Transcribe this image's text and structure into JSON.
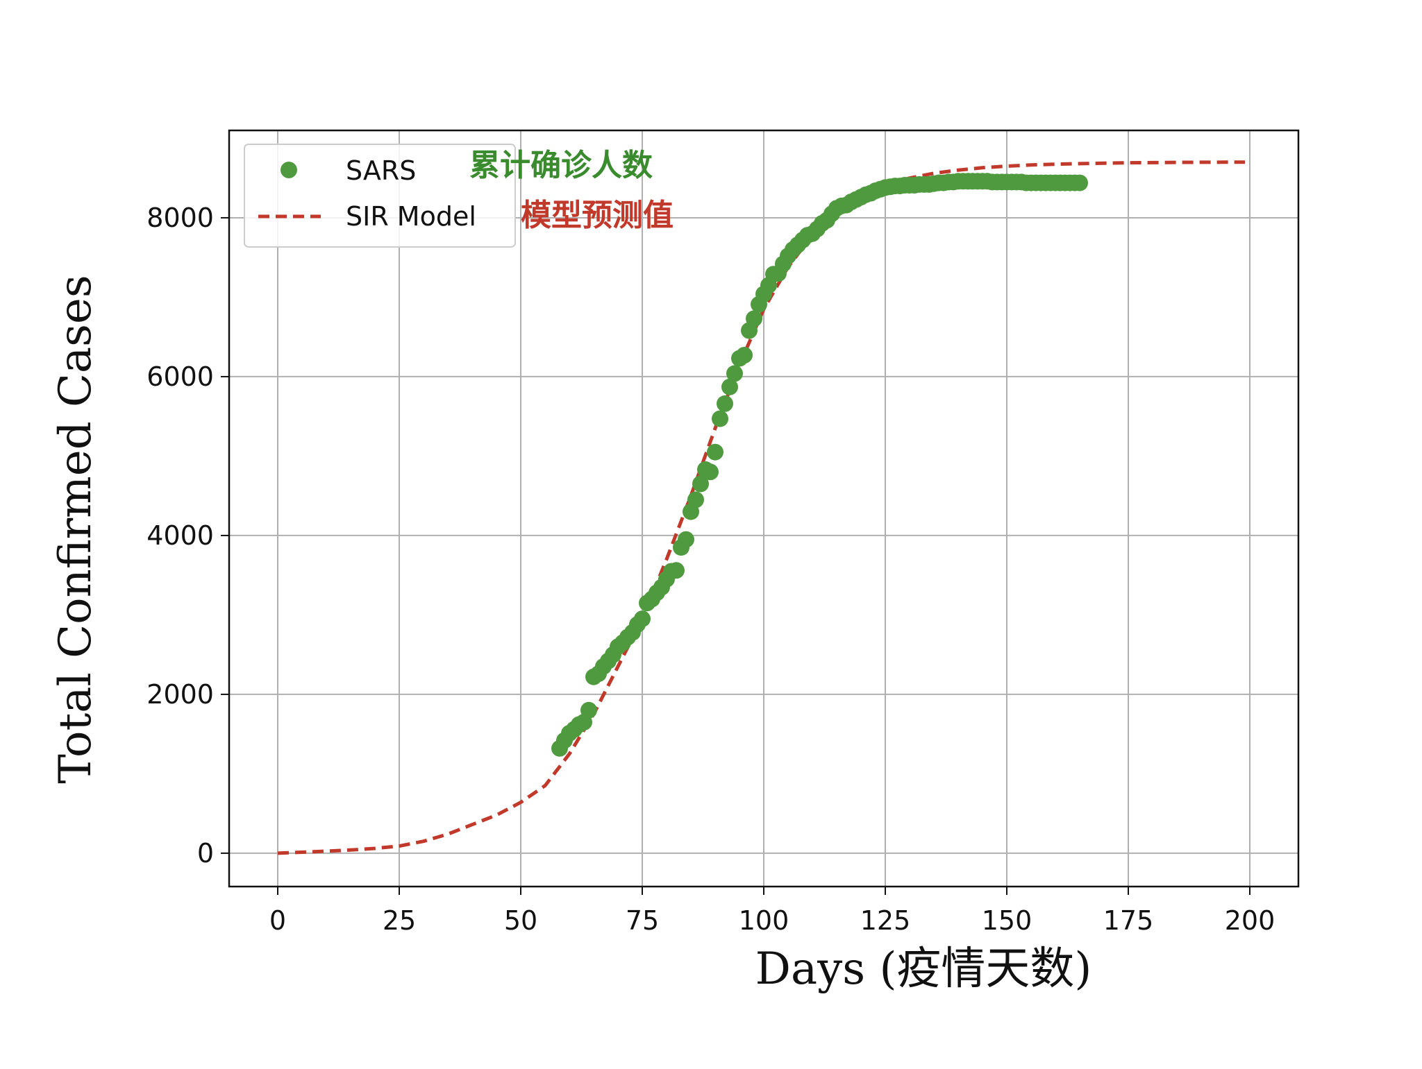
{
  "chart_data": {
    "type": "scatter",
    "xlabel": "Days (疫情天数)",
    "ylabel": "Total Confirmed Cases",
    "xlim": [
      -10,
      210
    ],
    "ylim": [
      -420,
      9100
    ],
    "xticks": [
      0,
      25,
      50,
      75,
      100,
      125,
      150,
      175,
      200
    ],
    "yticks": [
      0,
      2000,
      4000,
      6000,
      8000
    ],
    "grid": true,
    "legend_position": "top-left",
    "series": [
      {
        "name": "SARS",
        "type": "scatter",
        "color": "#4f9a3e",
        "x": [
          58,
          59,
          60,
          61,
          62,
          63,
          64,
          65,
          66,
          67,
          68,
          69,
          70,
          71,
          72,
          73,
          74,
          75,
          76,
          77,
          78,
          79,
          80,
          81,
          82,
          83,
          84,
          85,
          86,
          87,
          88,
          89,
          90,
          91,
          92,
          93,
          94,
          95,
          96,
          97,
          98,
          99,
          100,
          101,
          102,
          103,
          104,
          105,
          106,
          107,
          108,
          109,
          110,
          111,
          112,
          113,
          114,
          115,
          116,
          117,
          118,
          119,
          120,
          121,
          122,
          123,
          124,
          125,
          126,
          127,
          128,
          129,
          130,
          131,
          132,
          133,
          134,
          135,
          136,
          137,
          138,
          139,
          140,
          141,
          142,
          143,
          144,
          145,
          146,
          147,
          148,
          149,
          150,
          151,
          152,
          153,
          154,
          155,
          156,
          157,
          158,
          159,
          160,
          161,
          162,
          163,
          164,
          165
        ],
        "y": [
          1320,
          1420,
          1510,
          1560,
          1620,
          1650,
          1800,
          2220,
          2260,
          2350,
          2420,
          2500,
          2600,
          2650,
          2720,
          2780,
          2880,
          2950,
          3150,
          3200,
          3280,
          3350,
          3450,
          3550,
          3560,
          3850,
          3950,
          4300,
          4450,
          4650,
          4830,
          4800,
          5050,
          5470,
          5660,
          5870,
          6040,
          6230,
          6270,
          6580,
          6730,
          6910,
          7040,
          7150,
          7290,
          7300,
          7420,
          7520,
          7600,
          7660,
          7720,
          7780,
          7800,
          7860,
          7930,
          7970,
          8050,
          8120,
          8150,
          8160,
          8200,
          8230,
          8260,
          8290,
          8310,
          8340,
          8360,
          8380,
          8390,
          8400,
          8400,
          8410,
          8410,
          8410,
          8420,
          8420,
          8420,
          8430,
          8440,
          8440,
          8450,
          8450,
          8460,
          8460,
          8460,
          8460,
          8460,
          8460,
          8460,
          8450,
          8450,
          8450,
          8450,
          8450,
          8450,
          8450,
          8440,
          8440,
          8440,
          8440,
          8440,
          8440,
          8440,
          8440,
          8440,
          8440,
          8440,
          8440
        ]
      },
      {
        "name": "SIR Model",
        "type": "line",
        "style": "dashed",
        "color": "#c0392b",
        "x": [
          0,
          5,
          10,
          15,
          20,
          25,
          30,
          35,
          40,
          45,
          50,
          55,
          60,
          65,
          70,
          75,
          80,
          85,
          90,
          95,
          100,
          105,
          110,
          115,
          120,
          125,
          130,
          135,
          140,
          145,
          150,
          155,
          160,
          165,
          170,
          175,
          180,
          185,
          190,
          195,
          199
        ],
        "y": [
          0,
          12,
          25,
          40,
          60,
          90,
          150,
          240,
          360,
          480,
          640,
          850,
          1250,
          1750,
          2350,
          2950,
          3700,
          4500,
          5350,
          6150,
          6850,
          7380,
          7780,
          8070,
          8270,
          8410,
          8500,
          8560,
          8600,
          8630,
          8650,
          8665,
          8675,
          8682,
          8688,
          8692,
          8695,
          8697,
          8699,
          8700,
          8700
        ]
      }
    ]
  },
  "annotations": {
    "sars_cn": "累计确诊人数",
    "sir_cn": "模型预测值",
    "sars_color": "#3a8a2e",
    "sir_color": "#c0392b"
  }
}
